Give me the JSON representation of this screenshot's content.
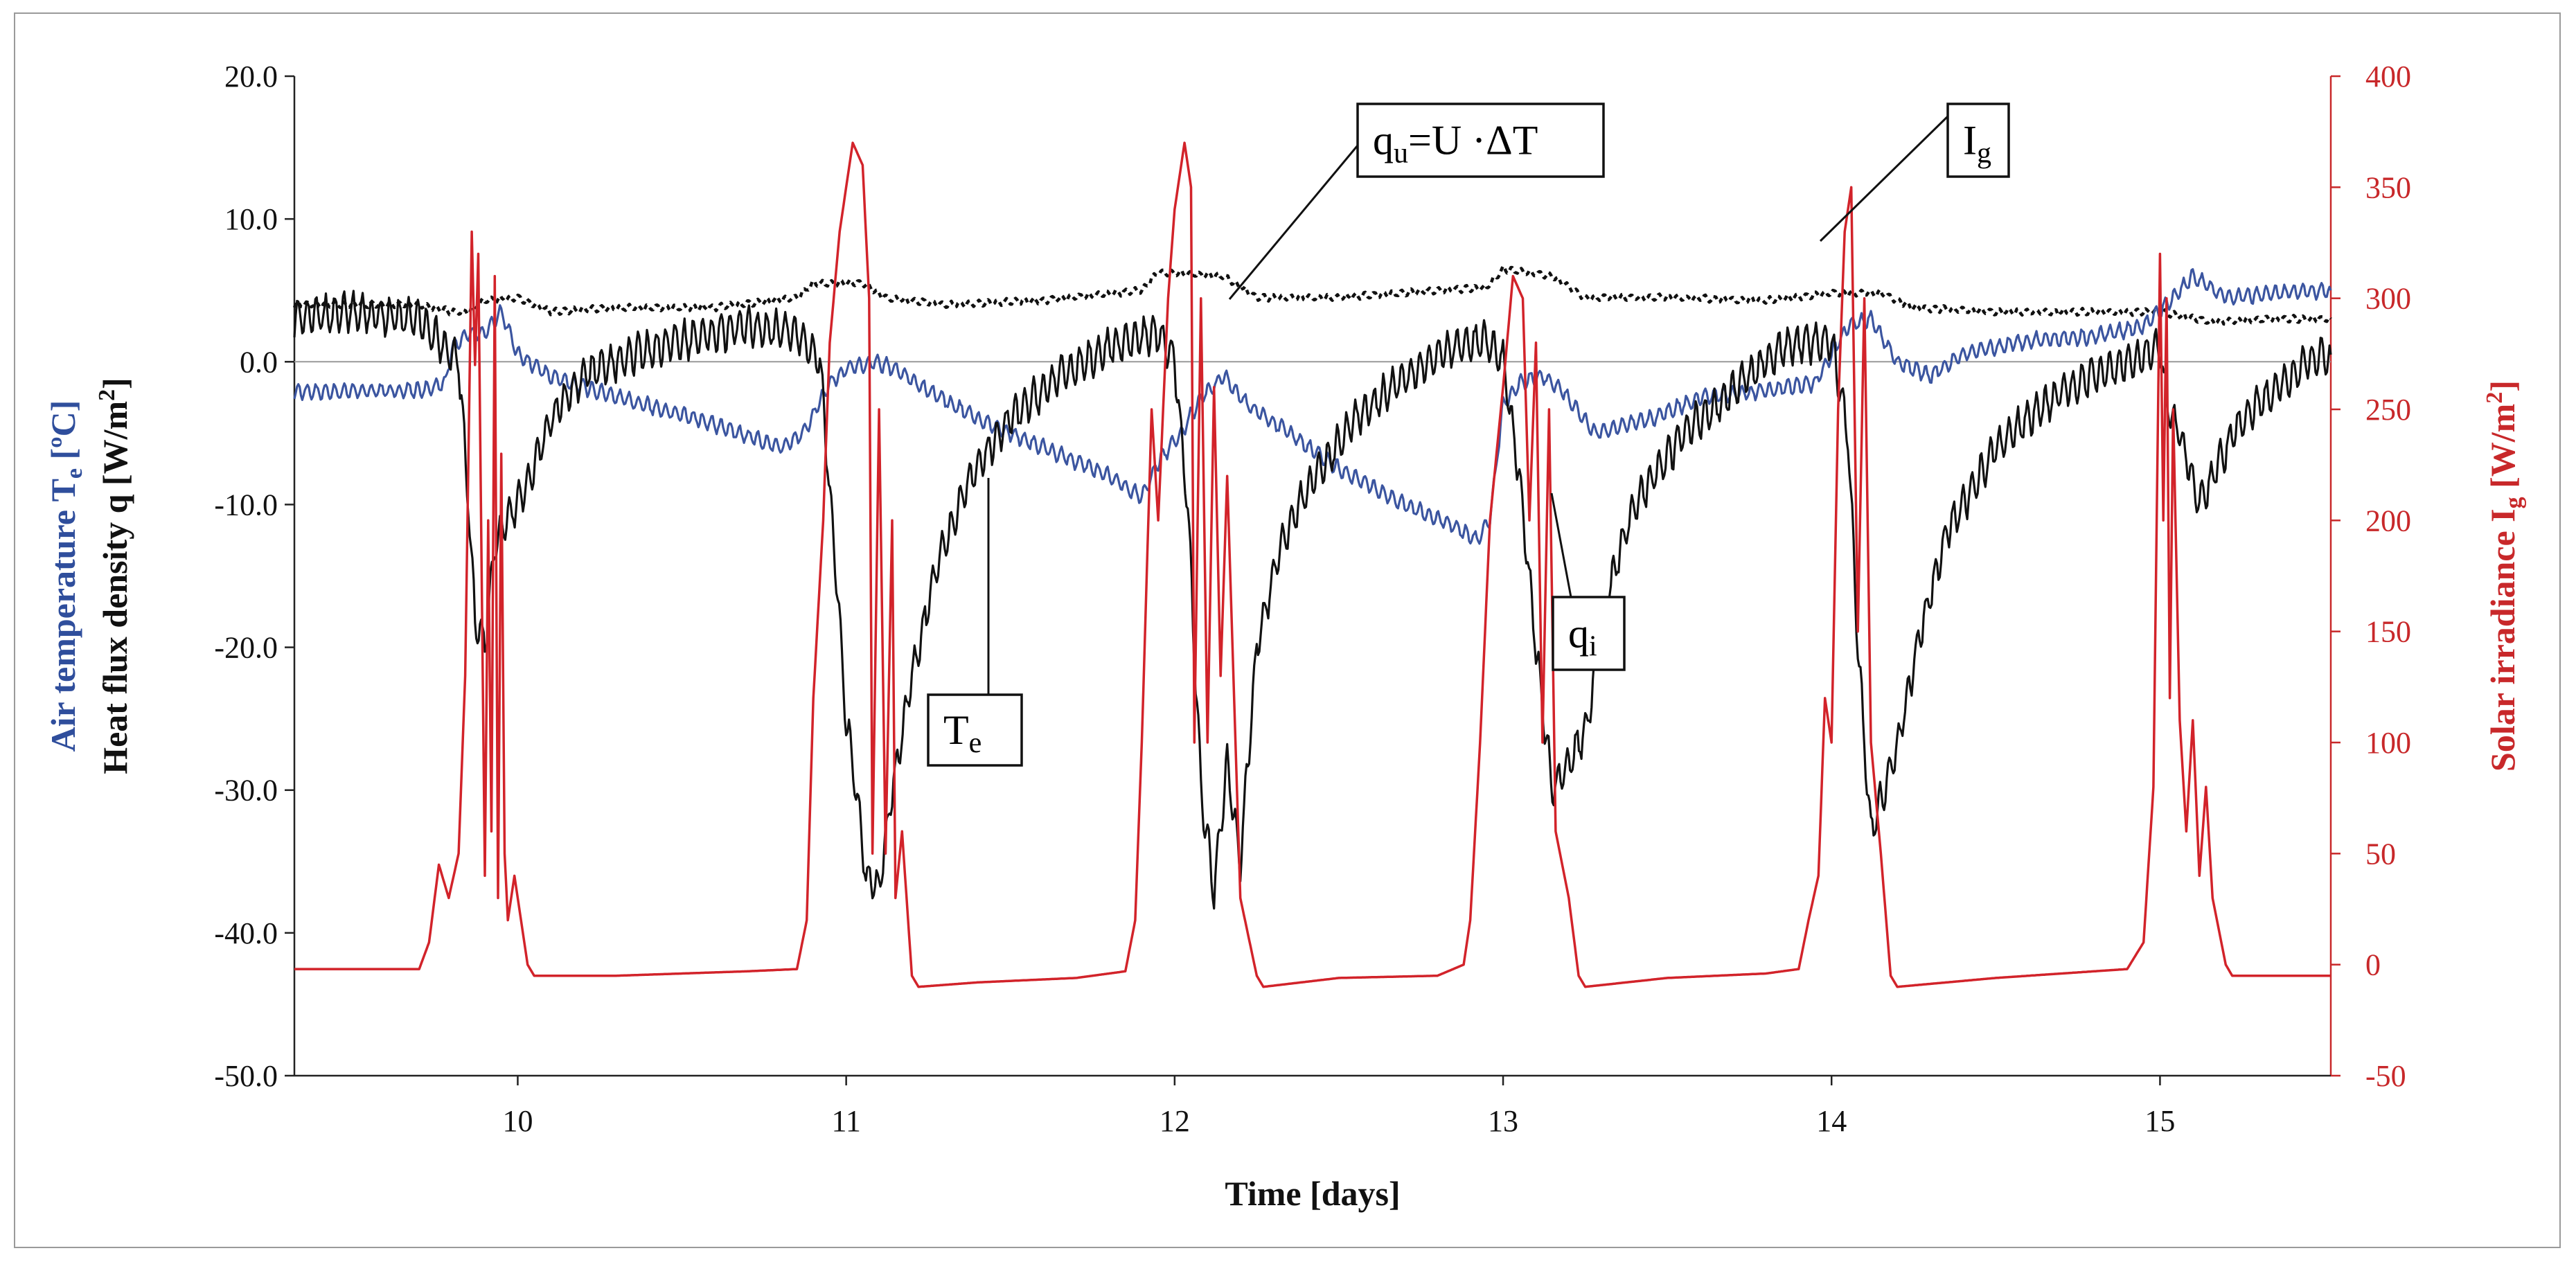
{
  "chart_data": {
    "type": "line",
    "xlabel": "Time [days]",
    "xlim": [
      9.32,
      15.52
    ],
    "x_ticks": [
      10,
      11,
      12,
      13,
      14,
      15
    ],
    "y_left": {
      "label_line1": {
        "text": "Air temperature T",
        "sub": "e",
        "unit": " [ºC]",
        "color": "#2f4e9c"
      },
      "label_line2": {
        "text": "Heat flux density q [W/m",
        "sup": "2",
        "close": "]",
        "color": "#111111"
      },
      "ylim": [
        -50,
        20
      ],
      "ticks": [
        20,
        10,
        0,
        -10,
        -20,
        -30,
        -40,
        -50
      ],
      "tick_labels": [
        "20.0",
        "10.0",
        "0.0",
        "-10.0",
        "-20.0",
        "-30.0",
        "-40.0",
        "-50.0"
      ]
    },
    "y_right": {
      "label": {
        "text": "Solar irradiance I",
        "sub": "g",
        "unit": " [W/m",
        "sup": "2",
        "close": "]",
        "color": "#c8282a"
      },
      "ylim": [
        -50,
        400
      ],
      "ticks": [
        400,
        350,
        300,
        250,
        200,
        150,
        100,
        50,
        0,
        -50
      ],
      "tick_labels": [
        "400",
        "350",
        "300",
        "250",
        "200",
        "150",
        "100",
        "50",
        "0",
        "-50"
      ]
    },
    "grid": false,
    "zero_line": true,
    "series": [
      {
        "name": "T_e",
        "axis": "left",
        "color": "#3b55a0",
        "style": "solid",
        "noise": 0.5,
        "points": [
          [
            9.32,
            -2.1
          ],
          [
            9.7,
            -2.0
          ],
          [
            9.78,
            -1.5
          ],
          [
            9.8,
            1.0
          ],
          [
            9.85,
            2.0
          ],
          [
            9.9,
            2.0
          ],
          [
            9.95,
            3.5
          ],
          [
            10.0,
            0.5
          ],
          [
            10.1,
            -1.0
          ],
          [
            10.3,
            -2.5
          ],
          [
            10.55,
            -4.0
          ],
          [
            10.8,
            -6.0
          ],
          [
            10.87,
            -5.0
          ],
          [
            10.95,
            -1.5
          ],
          [
            11.0,
            -0.5
          ],
          [
            11.08,
            0.0
          ],
          [
            11.15,
            -0.5
          ],
          [
            11.25,
            -2.0
          ],
          [
            11.4,
            -4.0
          ],
          [
            11.6,
            -6.0
          ],
          [
            11.8,
            -8.0
          ],
          [
            11.9,
            -9.5
          ],
          [
            11.95,
            -7.0
          ],
          [
            12.02,
            -5.0
          ],
          [
            12.08,
            -2.5
          ],
          [
            12.15,
            -1.0
          ],
          [
            12.22,
            -3.0
          ],
          [
            12.35,
            -5.0
          ],
          [
            12.5,
            -7.5
          ],
          [
            12.7,
            -10.0
          ],
          [
            12.85,
            -11.5
          ],
          [
            12.92,
            -12.5
          ],
          [
            12.96,
            -11.0
          ],
          [
            13.0,
            -3.0
          ],
          [
            13.05,
            -1.5
          ],
          [
            13.12,
            -1.0
          ],
          [
            13.18,
            -2.0
          ],
          [
            13.28,
            -5.0
          ],
          [
            13.45,
            -4.0
          ],
          [
            13.6,
            -2.5
          ],
          [
            13.8,
            -2.0
          ],
          [
            13.95,
            -1.5
          ],
          [
            14.0,
            0.5
          ],
          [
            14.05,
            2.5
          ],
          [
            14.12,
            3.0
          ],
          [
            14.2,
            0.0
          ],
          [
            14.3,
            -1.0
          ],
          [
            14.4,
            0.5
          ],
          [
            14.6,
            1.5
          ],
          [
            14.8,
            1.8
          ],
          [
            14.95,
            2.5
          ],
          [
            15.02,
            4.0
          ],
          [
            15.1,
            6.0
          ],
          [
            15.2,
            4.5
          ],
          [
            15.35,
            4.8
          ],
          [
            15.52,
            5.0
          ]
        ]
      },
      {
        "name": "q_i",
        "axis": "left",
        "color": "#111111",
        "style": "solid",
        "noise": 1.2,
        "points": [
          [
            9.32,
            3.0
          ],
          [
            9.5,
            3.5
          ],
          [
            9.7,
            3.0
          ],
          [
            9.82,
            0.0
          ],
          [
            9.85,
            -10.0
          ],
          [
            9.87,
            -18.0
          ],
          [
            9.9,
            -20.0
          ],
          [
            9.93,
            -13.0
          ],
          [
            9.97,
            -11.0
          ],
          [
            10.02,
            -9.0
          ],
          [
            10.1,
            -4.0
          ],
          [
            10.2,
            -1.0
          ],
          [
            10.35,
            0.5
          ],
          [
            10.5,
            1.5
          ],
          [
            10.7,
            2.5
          ],
          [
            10.85,
            2.0
          ],
          [
            10.92,
            0.0
          ],
          [
            10.97,
            -15.0
          ],
          [
            11.0,
            -25.0
          ],
          [
            11.03,
            -30.0
          ],
          [
            11.06,
            -36.0
          ],
          [
            11.1,
            -37.0
          ],
          [
            11.14,
            -30.0
          ],
          [
            11.2,
            -22.0
          ],
          [
            11.28,
            -14.0
          ],
          [
            11.38,
            -8.0
          ],
          [
            11.5,
            -4.0
          ],
          [
            11.65,
            -1.0
          ],
          [
            11.8,
            1.0
          ],
          [
            11.95,
            2.0
          ],
          [
            12.0,
            0.0
          ],
          [
            12.04,
            -10.0
          ],
          [
            12.08,
            -30.0
          ],
          [
            12.12,
            -37.0
          ],
          [
            12.16,
            -28.0
          ],
          [
            12.2,
            -35.0
          ],
          [
            12.25,
            -20.0
          ],
          [
            12.32,
            -13.0
          ],
          [
            12.4,
            -9.0
          ],
          [
            12.55,
            -4.0
          ],
          [
            12.7,
            -1.0
          ],
          [
            12.85,
            1.0
          ],
          [
            12.95,
            1.5
          ],
          [
            13.0,
            0.0
          ],
          [
            13.05,
            -8.0
          ],
          [
            13.1,
            -20.0
          ],
          [
            13.15,
            -30.0
          ],
          [
            13.2,
            -28.0
          ],
          [
            13.25,
            -26.0
          ],
          [
            13.32,
            -16.0
          ],
          [
            13.4,
            -10.0
          ],
          [
            13.55,
            -5.0
          ],
          [
            13.7,
            -2.0
          ],
          [
            13.85,
            1.0
          ],
          [
            14.0,
            1.5
          ],
          [
            14.05,
            -5.0
          ],
          [
            14.08,
            -20.0
          ],
          [
            14.12,
            -33.0
          ],
          [
            14.16,
            -30.0
          ],
          [
            14.2,
            -27.0
          ],
          [
            14.26,
            -20.0
          ],
          [
            14.35,
            -12.0
          ],
          [
            14.5,
            -6.0
          ],
          [
            14.7,
            -2.0
          ],
          [
            14.9,
            0.0
          ],
          [
            15.0,
            1.0
          ],
          [
            15.02,
            -3.0
          ],
          [
            15.06,
            -5.0
          ],
          [
            15.12,
            -10.0
          ],
          [
            15.18,
            -7.0
          ],
          [
            15.25,
            -4.0
          ],
          [
            15.35,
            -2.0
          ],
          [
            15.45,
            0.0
          ],
          [
            15.52,
            0.5
          ]
        ]
      },
      {
        "name": "q_u = U · ΔT",
        "axis": "left",
        "color": "#111111",
        "style": "dotted",
        "noise": 0.2,
        "points": [
          [
            9.32,
            4.0
          ],
          [
            9.7,
            4.0
          ],
          [
            9.8,
            3.5
          ],
          [
            9.85,
            3.5
          ],
          [
            9.9,
            4.3
          ],
          [
            10.0,
            4.5
          ],
          [
            10.1,
            3.5
          ],
          [
            10.3,
            3.8
          ],
          [
            10.6,
            3.8
          ],
          [
            10.85,
            4.5
          ],
          [
            10.9,
            5.5
          ],
          [
            11.05,
            5.5
          ],
          [
            11.12,
            4.5
          ],
          [
            11.3,
            4.0
          ],
          [
            11.6,
            4.3
          ],
          [
            11.9,
            5.0
          ],
          [
            11.95,
            6.3
          ],
          [
            12.15,
            6.0
          ],
          [
            12.25,
            4.5
          ],
          [
            12.5,
            4.5
          ],
          [
            12.8,
            5.0
          ],
          [
            12.95,
            5.2
          ],
          [
            13.0,
            6.5
          ],
          [
            13.15,
            6.0
          ],
          [
            13.25,
            4.5
          ],
          [
            13.5,
            4.5
          ],
          [
            13.8,
            4.3
          ],
          [
            14.0,
            4.8
          ],
          [
            14.15,
            4.8
          ],
          [
            14.25,
            3.8
          ],
          [
            14.5,
            3.5
          ],
          [
            14.8,
            3.5
          ],
          [
            15.0,
            3.5
          ],
          [
            15.15,
            2.8
          ],
          [
            15.35,
            3.0
          ],
          [
            15.52,
            3.0
          ]
        ]
      },
      {
        "name": "I_g",
        "axis": "right",
        "color": "#d2232a",
        "style": "solid",
        "noise": 0,
        "points": [
          [
            9.32,
            -2
          ],
          [
            9.6,
            -2
          ],
          [
            9.7,
            -2
          ],
          [
            9.73,
            10
          ],
          [
            9.76,
            45
          ],
          [
            9.79,
            30
          ],
          [
            9.82,
            50
          ],
          [
            9.84,
            130
          ],
          [
            9.86,
            330
          ],
          [
            9.87,
            270
          ],
          [
            9.88,
            320
          ],
          [
            9.9,
            40
          ],
          [
            9.91,
            200
          ],
          [
            9.92,
            60
          ],
          [
            9.93,
            310
          ],
          [
            9.94,
            30
          ],
          [
            9.95,
            230
          ],
          [
            9.96,
            50
          ],
          [
            9.97,
            20
          ],
          [
            9.99,
            40
          ],
          [
            10.03,
            0
          ],
          [
            10.05,
            -5
          ],
          [
            10.3,
            -5
          ],
          [
            10.7,
            -3
          ],
          [
            10.85,
            -2
          ],
          [
            10.88,
            20
          ],
          [
            10.9,
            120
          ],
          [
            10.93,
            200
          ],
          [
            10.95,
            280
          ],
          [
            10.98,
            330
          ],
          [
            11.02,
            370
          ],
          [
            11.05,
            360
          ],
          [
            11.07,
            300
          ],
          [
            11.08,
            50
          ],
          [
            11.1,
            250
          ],
          [
            11.12,
            50
          ],
          [
            11.14,
            200
          ],
          [
            11.15,
            30
          ],
          [
            11.17,
            60
          ],
          [
            11.2,
            -5
          ],
          [
            11.22,
            -10
          ],
          [
            11.4,
            -8
          ],
          [
            11.7,
            -6
          ],
          [
            11.85,
            -3
          ],
          [
            11.88,
            20
          ],
          [
            11.9,
            100
          ],
          [
            11.93,
            250
          ],
          [
            11.95,
            200
          ],
          [
            11.98,
            300
          ],
          [
            12.0,
            340
          ],
          [
            12.03,
            370
          ],
          [
            12.05,
            350
          ],
          [
            12.06,
            100
          ],
          [
            12.08,
            300
          ],
          [
            12.1,
            100
          ],
          [
            12.12,
            260
          ],
          [
            12.14,
            130
          ],
          [
            12.16,
            220
          ],
          [
            12.2,
            30
          ],
          [
            12.25,
            -5
          ],
          [
            12.27,
            -10
          ],
          [
            12.5,
            -6
          ],
          [
            12.8,
            -5
          ],
          [
            12.88,
            0
          ],
          [
            12.9,
            20
          ],
          [
            12.93,
            100
          ],
          [
            12.96,
            200
          ],
          [
            13.0,
            260
          ],
          [
            13.03,
            310
          ],
          [
            13.06,
            300
          ],
          [
            13.08,
            200
          ],
          [
            13.1,
            280
          ],
          [
            13.12,
            100
          ],
          [
            13.14,
            250
          ],
          [
            13.16,
            60
          ],
          [
            13.2,
            30
          ],
          [
            13.23,
            -5
          ],
          [
            13.25,
            -10
          ],
          [
            13.5,
            -6
          ],
          [
            13.8,
            -4
          ],
          [
            13.9,
            -2
          ],
          [
            13.93,
            20
          ],
          [
            13.96,
            40
          ],
          [
            13.98,
            120
          ],
          [
            14.0,
            100
          ],
          [
            14.02,
            250
          ],
          [
            14.04,
            330
          ],
          [
            14.06,
            350
          ],
          [
            14.08,
            150
          ],
          [
            14.1,
            300
          ],
          [
            14.12,
            100
          ],
          [
            14.15,
            50
          ],
          [
            14.18,
            -5
          ],
          [
            14.2,
            -10
          ],
          [
            14.5,
            -6
          ],
          [
            14.9,
            -2
          ],
          [
            14.95,
            10
          ],
          [
            14.98,
            80
          ],
          [
            15.0,
            320
          ],
          [
            15.01,
            200
          ],
          [
            15.02,
            300
          ],
          [
            15.03,
            120
          ],
          [
            15.04,
            250
          ],
          [
            15.06,
            110
          ],
          [
            15.08,
            60
          ],
          [
            15.1,
            110
          ],
          [
            15.12,
            40
          ],
          [
            15.14,
            80
          ],
          [
            15.16,
            30
          ],
          [
            15.2,
            0
          ],
          [
            15.22,
            -5
          ],
          [
            15.52,
            -5
          ]
        ]
      }
    ],
    "callouts": [
      {
        "name": "qu-label",
        "base": "q",
        "sub": "u",
        "rest": "=U ·ΔT"
      },
      {
        "name": "ig-label",
        "base": "I",
        "sub": "g",
        "rest": ""
      },
      {
        "name": "qi-label",
        "base": "q",
        "sub": "i",
        "rest": ""
      },
      {
        "name": "te-label",
        "base": "T",
        "sub": "e",
        "rest": ""
      }
    ]
  }
}
